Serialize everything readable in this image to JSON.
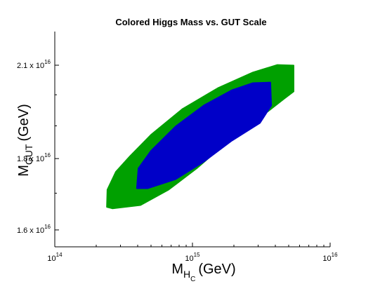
{
  "chart_data": {
    "type": "contour",
    "title": "Colored Higgs Mass vs. GUT Scale",
    "x_label": {
      "main": "M",
      "sub": "H",
      "subsub": "C",
      "unit": "(GeV)"
    },
    "y_label": {
      "main": "M",
      "sub": "GUT",
      "unit": "(GeV)"
    },
    "xscale": "log",
    "yscale": "log",
    "xlim": [
      100000000000000.0,
      1e+16
    ],
    "ylim": [
      1.556e+16,
      2.22e+16
    ],
    "xticks": [
      {
        "value": 100000000000000.0,
        "label": "10",
        "exponent": "14"
      },
      {
        "value": 1000000000000000.0,
        "label": "10",
        "exponent": "15"
      },
      {
        "value": 1e+16,
        "label": "10",
        "exponent": "16"
      }
    ],
    "yticks": [
      {
        "value": 1.6e+16,
        "label": "1.6 x 10",
        "exponent": "16"
      },
      {
        "value": 1.8e+16,
        "label": "1.8 x 10",
        "exponent": "16"
      },
      {
        "value": 2.1e+16,
        "label": "2.1 x 10",
        "exponent": "16"
      }
    ],
    "yminor": [
      1.7e+16,
      1.9e+16,
      2e+16
    ],
    "series": [
      {
        "color": "#00a000",
        "x": [
          239000000000000.0,
          241000000000000.0,
          278000000000000.0,
          352000000000000.0,
          500000000000000.0,
          848000000000000.0,
          1530000000000000.0,
          2750000000000000.0,
          4140000000000000.0,
          5430000000000000.0,
          5430000000000000.0,
          4660000000000000.0,
          2750000000000000.0,
          1720000000000000.0,
          1070000000000000.0,
          671000000000000.0,
          419000000000000.0,
          262000000000000.0
        ],
        "y": [
          1.662e+16,
          1.71e+16,
          1.761e+16,
          1.807e+16,
          1.872e+16,
          1.954e+16,
          2.022e+16,
          2.075e+16,
          2.101e+16,
          2.099e+16,
          2.011e+16,
          1.988e+16,
          1.909e+16,
          1.844e+16,
          1.771e+16,
          1.71e+16,
          1.667e+16,
          1.658e+16
        ]
      },
      {
        "color": "#0000c8",
        "x": [
          395000000000000.0,
          405000000000000.0,
          500000000000000.0,
          754000000000000.0,
          1210000000000000.0,
          1930000000000000.0,
          2750000000000000.0,
          3680000000000000.0,
          3730000000000000.0,
          3090000000000000.0,
          1930000000000000.0,
          1210000000000000.0,
          754000000000000.0,
          472000000000000.0
        ],
        "y": [
          1.714e+16,
          1.771e+16,
          1.823e+16,
          1.898e+16,
          1.965e+16,
          2.015e+16,
          2.039e+16,
          2.041e+16,
          1.965e+16,
          1.909e+16,
          1.854e+16,
          1.791e+16,
          1.74e+16,
          1.714e+16
        ]
      }
    ]
  }
}
